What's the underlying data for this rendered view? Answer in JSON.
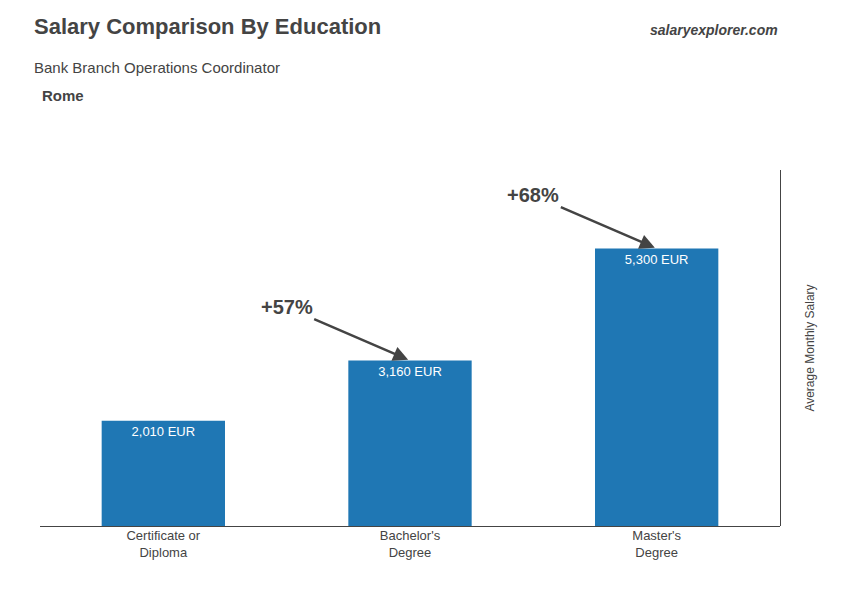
{
  "chart_data": {
    "type": "bar",
    "title": "Salary Comparison By Education",
    "subtitle": "Bank Branch Operations Coordinator",
    "ylabel": "Average Monthly Salary",
    "categories": [
      "Certificate or\nDiploma",
      "Bachelor's\nDegree",
      "Master's\nDegree"
    ],
    "values": [
      2010,
      3160,
      5300
    ],
    "value_labels": [
      "2,010 EUR",
      "3,160 EUR",
      "5,300 EUR"
    ],
    "data_labels": true,
    "ylim": [
      0,
      6800
    ],
    "tick_labels": "x",
    "grid": false,
    "annotations": [
      "Rome",
      "+57%",
      "+68%",
      "salaryexplorer.com"
    ]
  }
}
